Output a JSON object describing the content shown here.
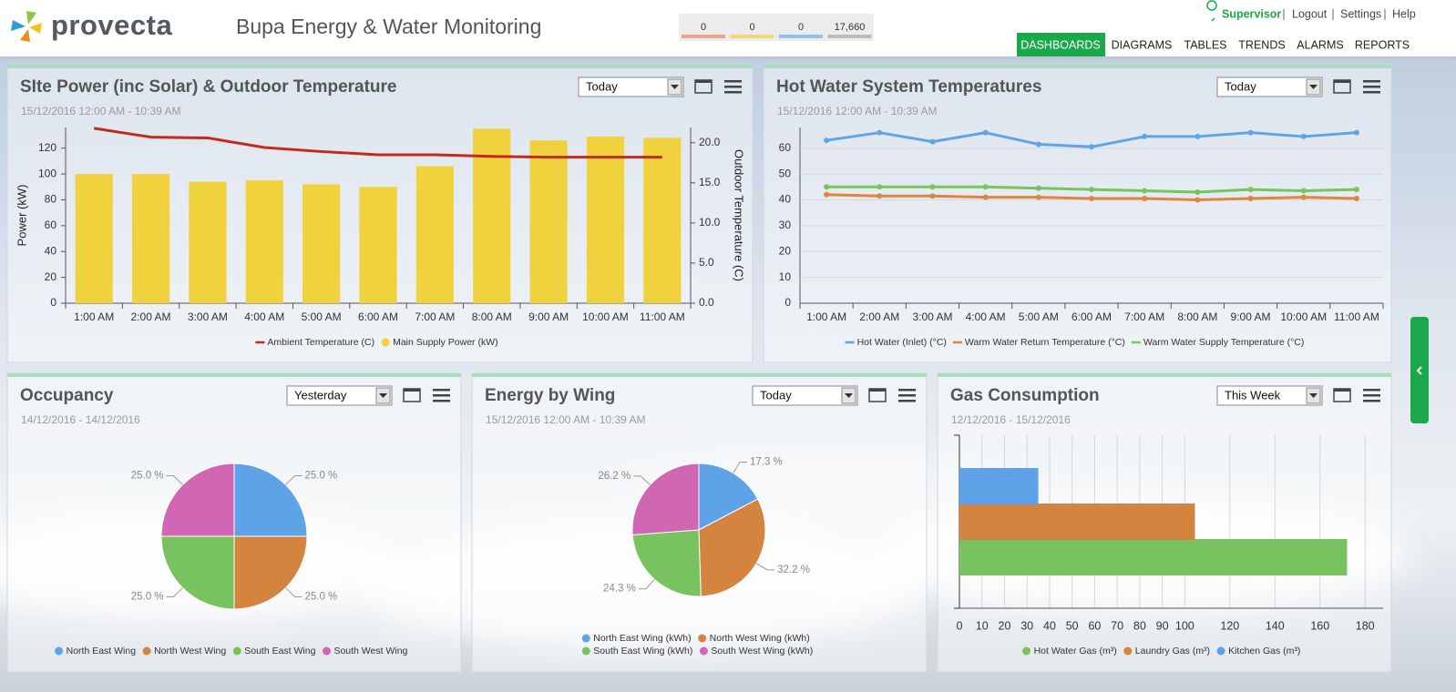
{
  "header": {
    "logo": "provecta",
    "title": "Bupa Energy & Water Monitoring",
    "counters": [
      {
        "value": "0",
        "color": "#eca48a"
      },
      {
        "value": "0",
        "color": "#f0d878"
      },
      {
        "value": "0",
        "color": "#92c2ea"
      },
      {
        "value": "17,660",
        "color": "#bcbcbc"
      }
    ],
    "user": "Supervisor",
    "links": [
      "Logout",
      "Settings",
      "Help"
    ],
    "nav": [
      "DASHBOARDS",
      "DIAGRAMS",
      "TABLES",
      "TRENDS",
      "ALARMS",
      "REPORTS"
    ],
    "active_nav": 0
  },
  "chart_data": [
    {
      "type": "combo",
      "title": "SIte Power (inc Solar) & Outdoor Temperature",
      "period": "Today",
      "subtitle": "15/12/2016 12:00 AM - 10:39 AM",
      "ylabel": "Power (kW)",
      "y2label": "Outdoor Temperature (C)",
      "categories": [
        "1:00 AM",
        "2:00 AM",
        "3:00 AM",
        "4:00 AM",
        "5:00 AM",
        "6:00 AM",
        "7:00 AM",
        "8:00 AM",
        "9:00 AM",
        "10:00 AM",
        "11:00 AM"
      ],
      "series": [
        {
          "name": "Ambient Temperature (C)",
          "type": "line",
          "axis": "y2",
          "color": "#c42a1c",
          "values": [
            21.8,
            20.7,
            20.6,
            19.4,
            18.9,
            18.5,
            18.5,
            18.3,
            18.2,
            18.2,
            18.2
          ]
        },
        {
          "name": "Main Supply Power (kW)",
          "type": "bar",
          "color": "#f0d23e",
          "values": [
            100,
            100,
            94,
            95,
            92,
            90,
            106,
            135,
            126,
            129,
            128
          ]
        }
      ],
      "ylim": [
        0,
        136
      ],
      "yticks": [
        0,
        20,
        40,
        60,
        80,
        100,
        120
      ],
      "y2lim": [
        0,
        21.9
      ],
      "y2ticks": [
        {
          "value": 0,
          "label": "0.0"
        },
        {
          "value": 5,
          "label": "5.0"
        },
        {
          "value": 10,
          "label": "10.0"
        },
        {
          "value": 15,
          "label": "15.0"
        },
        {
          "value": 20,
          "label": "20.0"
        }
      ],
      "grid": false
    },
    {
      "type": "line",
      "title": "Hot Water System Temperatures",
      "period": "Today",
      "subtitle": "15/12/2016 12:00 AM - 10:39 AM",
      "categories": [
        "1:00 AM",
        "2:00 AM",
        "3:00 AM",
        "4:00 AM",
        "5:00 AM",
        "6:00 AM",
        "7:00 AM",
        "8:00 AM",
        "9:00 AM",
        "10:00 AM",
        "11:00 AM"
      ],
      "series": [
        {
          "name": "Hot Water (Inlet) (°C)",
          "color": "#5da5e8",
          "values": [
            63,
            66,
            62.5,
            66,
            61.5,
            60.5,
            64.5,
            64.5,
            66,
            64.5,
            66
          ]
        },
        {
          "name": "Warm Water Return Temperature (°C)",
          "color": "#e0853e",
          "values": [
            42,
            41.5,
            41.5,
            41,
            41,
            40.5,
            40.5,
            40,
            40.5,
            41,
            40.5
          ]
        },
        {
          "name": "Warm Water Supply Temperature (°C)",
          "color": "#78c45e",
          "values": [
            45,
            45,
            45,
            45,
            44.5,
            44,
            43.5,
            43,
            44,
            43.5,
            44
          ]
        }
      ],
      "ylim": [
        0,
        68
      ],
      "yticks": [
        0,
        10,
        20,
        30,
        40,
        50,
        60
      ],
      "grid": true
    },
    {
      "type": "pie",
      "title": "Occupancy",
      "period": "Yesterday",
      "subtitle": "14/12/2016 - 14/12/2016",
      "categories": [
        "North East Wing",
        "North West Wing",
        "South East Wing",
        "South West Wing"
      ],
      "values": [
        25,
        25,
        25,
        25
      ],
      "value_labels": [
        "25.0 %",
        "25.0 %",
        "25.0 %",
        "25.0 %"
      ],
      "colors": [
        "#5ea2e8",
        "#d5843f",
        "#78c260",
        "#d166b5"
      ]
    },
    {
      "type": "pie",
      "title": "Energy by Wing",
      "period": "Today",
      "subtitle": "15/12/2016 12:00 AM - 10:39 AM",
      "categories": [
        "North East Wing (kWh)",
        "North West Wing (kWh)",
        "South East Wing (kWh)",
        "South West Wing (kWh)"
      ],
      "values": [
        17.3,
        32.2,
        24.3,
        26.2
      ],
      "value_labels": [
        "17.3 %",
        "32.2 %",
        "24.3 %",
        "26.2 %"
      ],
      "colors": [
        "#5ea2e8",
        "#d5843f",
        "#78c260",
        "#d166b5"
      ]
    },
    {
      "type": "bar",
      "orientation": "horizontal",
      "title": "Gas Consumption",
      "period": "This Week",
      "subtitle": "12/12/2016 - 15/12/2016",
      "series": [
        {
          "name": "Hot Water Gas (m³)",
          "color": "#78c260",
          "values": [
            172
          ]
        },
        {
          "name": "Laundry Gas (m³)",
          "color": "#d5843f",
          "values": [
            104.5
          ]
        },
        {
          "name": "Kitchen Gas (m³)",
          "color": "#5ea2e8",
          "values": [
            35
          ]
        }
      ],
      "xlim": [
        0,
        188
      ],
      "xticks": [
        0,
        10,
        20,
        30,
        40,
        50,
        60,
        70,
        80,
        90,
        100,
        120,
        140,
        160,
        180
      ],
      "grid": true
    }
  ]
}
